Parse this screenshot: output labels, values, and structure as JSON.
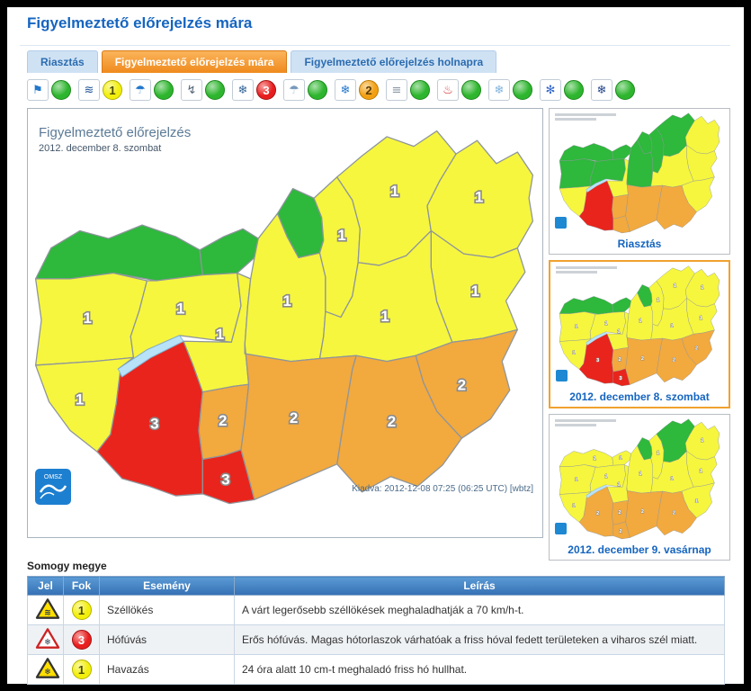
{
  "page": {
    "title": "Figyelmeztető előrejelzés mára"
  },
  "tabs": [
    {
      "label": "Riasztás"
    },
    {
      "label": "Figyelmeztető előrejelzés mára"
    },
    {
      "label": "Figyelmeztető előrejelzés holnapra"
    }
  ],
  "toolbar": {
    "items": [
      {
        "name": "wind",
        "glyph": "⚑",
        "glyph_color": "#2277cc",
        "level": "ok"
      },
      {
        "name": "wind-gust",
        "glyph": "≋",
        "glyph_color": "#225599",
        "level": "1"
      },
      {
        "name": "rain-shower",
        "glyph": "☂",
        "glyph_color": "#2277cc",
        "level": "ok"
      },
      {
        "name": "thunderstorm",
        "glyph": "↯",
        "glyph_color": "#556677",
        "level": "ok"
      },
      {
        "name": "snowdrift",
        "glyph": "❄",
        "glyph_color": "#336699",
        "level": "3"
      },
      {
        "name": "freezing-rain",
        "glyph": "☂",
        "glyph_color": "#7799bb",
        "level": "ok"
      },
      {
        "name": "snow",
        "glyph": "❄",
        "glyph_color": "#2277cc",
        "level": "2"
      },
      {
        "name": "fog",
        "glyph": "≡",
        "glyph_color": "#8a98a6",
        "level": "ok"
      },
      {
        "name": "heat",
        "glyph": "♨",
        "glyph_color": "#cc3333",
        "level": "ok"
      },
      {
        "name": "ground-frost",
        "glyph": "❄",
        "glyph_color": "#7fb2dd",
        "level": "ok"
      },
      {
        "name": "cold",
        "glyph": "✻",
        "glyph_color": "#3366cc",
        "level": "ok"
      },
      {
        "name": "extreme-cold",
        "glyph": "❄",
        "glyph_color": "#224488",
        "level": "ok"
      }
    ]
  },
  "levels": {
    "ok": {
      "bg": "#2db52d",
      "border": "#1d8a1d",
      "label": "",
      "text_color": "#ffffff"
    },
    "1": {
      "bg": "#f2ef0c",
      "border": "#b5b200",
      "label": "1",
      "text_color": "#4a4a00"
    },
    "2": {
      "bg": "#f2a012",
      "border": "#bd7a00",
      "label": "2",
      "text_color": "#5a3a00"
    },
    "3": {
      "bg": "#e81e1e",
      "border": "#a31111",
      "label": "3",
      "text_color": "#ffffff"
    }
  },
  "map_colors": {
    "0": "#2eb83c",
    "1": "#f6f63e",
    "2": "#f2a93e",
    "3": "#e9241c"
  },
  "main_map": {
    "title": "Figyelmeztető előrejelzés",
    "date": "2012. december 8. szombat",
    "issued": "Kiadva: 2012-12-08 07:25 (06:25 UTC) [wbtz]",
    "logo_text": "OMSZ",
    "levels": {
      "gyms": 0,
      "ke": 0,
      "nograd": 0,
      "vas": 1,
      "zala": 1,
      "veszprem": 1,
      "fejer": 1,
      "pest": 1,
      "heves": 1,
      "borsod": 1,
      "szabolcs": 1,
      "hajdu": 1,
      "jnsz": 1,
      "somogy": 3,
      "baranya": 3,
      "tolna": 2,
      "bacs": 2,
      "csongrad": 2,
      "bekes": 2
    }
  },
  "thumbnails": [
    {
      "caption": "Riasztás",
      "selected": false,
      "show_labels": false,
      "levels": {
        "gyms": 0,
        "ke": 0,
        "nograd": 0,
        "vas": 0,
        "veszprem": 0,
        "pest": 0,
        "heves": 0,
        "borsod": 0,
        "szabolcs": 1,
        "hajdu": 1,
        "jnsz": 1,
        "zala": 1,
        "fejer": 1,
        "somogy": 3,
        "tolna": 2,
        "baranya": 2,
        "bacs": 2,
        "csongrad": 2,
        "bekes": 1
      }
    },
    {
      "caption": "2012. december 8. szombat",
      "selected": true,
      "show_labels": true,
      "levels": {
        "gyms": 0,
        "ke": 0,
        "nograd": 0,
        "vas": 1,
        "zala": 1,
        "veszprem": 1,
        "fejer": 1,
        "pest": 1,
        "heves": 1,
        "borsod": 1,
        "szabolcs": 1,
        "hajdu": 1,
        "jnsz": 1,
        "somogy": 3,
        "baranya": 3,
        "tolna": 2,
        "bacs": 2,
        "csongrad": 2,
        "bekes": 2
      }
    },
    {
      "caption": "2012. december 9. vasárnap",
      "selected": false,
      "show_labels": true,
      "levels": {
        "gyms": 1,
        "ke": 1,
        "nograd": 0,
        "vas": 1,
        "zala": 1,
        "veszprem": 1,
        "fejer": 1,
        "pest": 1,
        "heves": 1,
        "borsod": 0,
        "szabolcs": 1,
        "hajdu": 1,
        "jnsz": 1,
        "somogy": 2,
        "baranya": 2,
        "tolna": 2,
        "bacs": 2,
        "csongrad": 2,
        "bekes": 1
      }
    }
  ],
  "warning_table": {
    "region_title": "Somogy megye",
    "columns": [
      "Jel",
      "Fok",
      "Esemény",
      "Leírás"
    ],
    "rows": [
      {
        "icon": "wind-gust-triangle",
        "icon_fill": "#ffdf00",
        "icon_stroke": "#333333",
        "icon_glyph": "≋",
        "glyph_color": "#223355",
        "level": "1",
        "event": "Széllökés",
        "description": "A várt legerősebb széllökések meghaladhatják a 70 km/h-t."
      },
      {
        "icon": "snowdrift-triangle",
        "icon_fill": "#ffffff",
        "icon_stroke": "#cc2222",
        "icon_glyph": "❄",
        "glyph_color": "#334455",
        "level": "3",
        "event": "Hófúvás",
        "description": "Erős hófúvás. Magas hótorlaszok várhatóak a friss hóval fedett területeken a viharos szél miatt."
      },
      {
        "icon": "snow-triangle",
        "icon_fill": "#ffdf00",
        "icon_stroke": "#333333",
        "icon_glyph": "❄",
        "glyph_color": "#223355",
        "level": "1",
        "event": "Havazás",
        "description": "24 óra alatt 10 cm-t meghaladó friss hó hullhat."
      }
    ]
  }
}
